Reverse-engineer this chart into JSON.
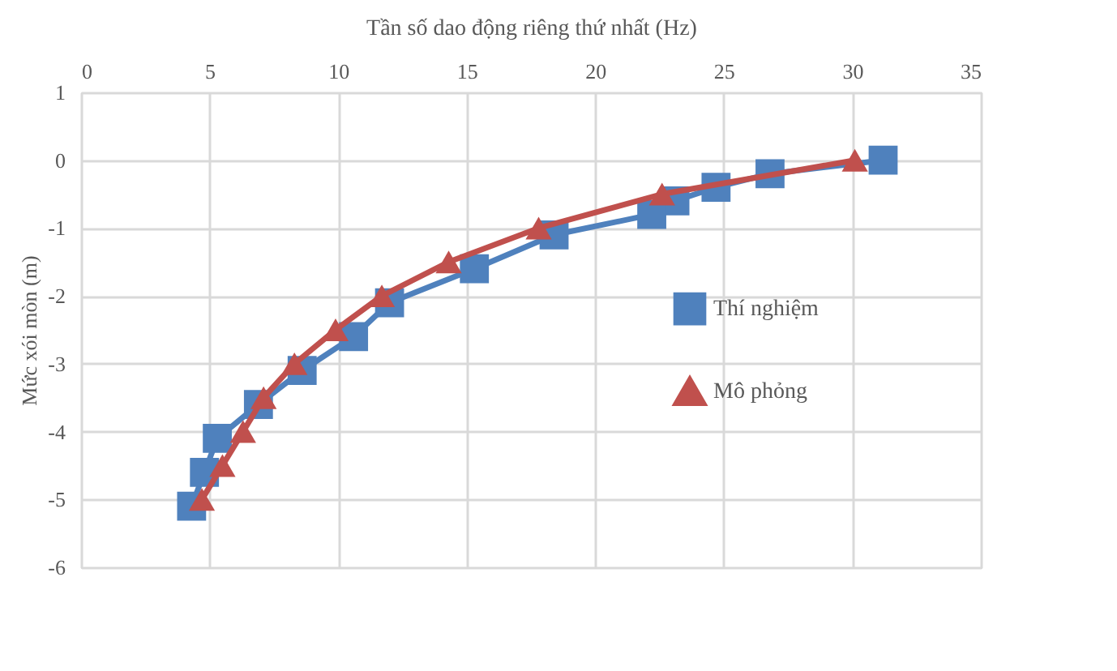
{
  "chart_data": {
    "type": "line",
    "xlabel": "Tần số dao động riêng thứ nhất (Hz)",
    "ylabel": "Mức xói mòn (m)",
    "xlim": [
      0,
      35
    ],
    "xticks": [
      0,
      5,
      10,
      15,
      20,
      25,
      30,
      35
    ],
    "ylim": [
      -6,
      1
    ],
    "yticks": [
      -6,
      -5,
      -4,
      -3,
      -2,
      -1,
      0,
      1
    ],
    "grid": true,
    "legend": "right",
    "series": [
      {
        "name": "Thí nghiệm",
        "color": "#4f81bd",
        "marker": "square",
        "x": [
          31.2,
          26.8,
          24.7,
          23.1,
          22.2,
          18.4,
          15.3,
          12.0,
          10.6,
          8.6,
          6.9,
          5.3,
          4.8,
          4.3
        ],
        "values": [
          0,
          -0.2,
          -0.4,
          -0.6,
          -0.8,
          -1.1,
          -1.6,
          -2.1,
          -2.6,
          -3.1,
          -3.6,
          -4.1,
          -4.6,
          -5.1
        ]
      },
      {
        "name": "Mô phỏng",
        "color": "#c0504d",
        "marker": "triangle",
        "x": [
          30.1,
          22.6,
          17.8,
          14.3,
          11.7,
          9.9,
          8.3,
          7.1,
          6.3,
          5.5,
          4.7
        ],
        "values": [
          0,
          -0.5,
          -1.0,
          -1.5,
          -2.0,
          -2.5,
          -3.0,
          -3.5,
          -4.0,
          -4.5,
          -5.0
        ]
      }
    ]
  }
}
